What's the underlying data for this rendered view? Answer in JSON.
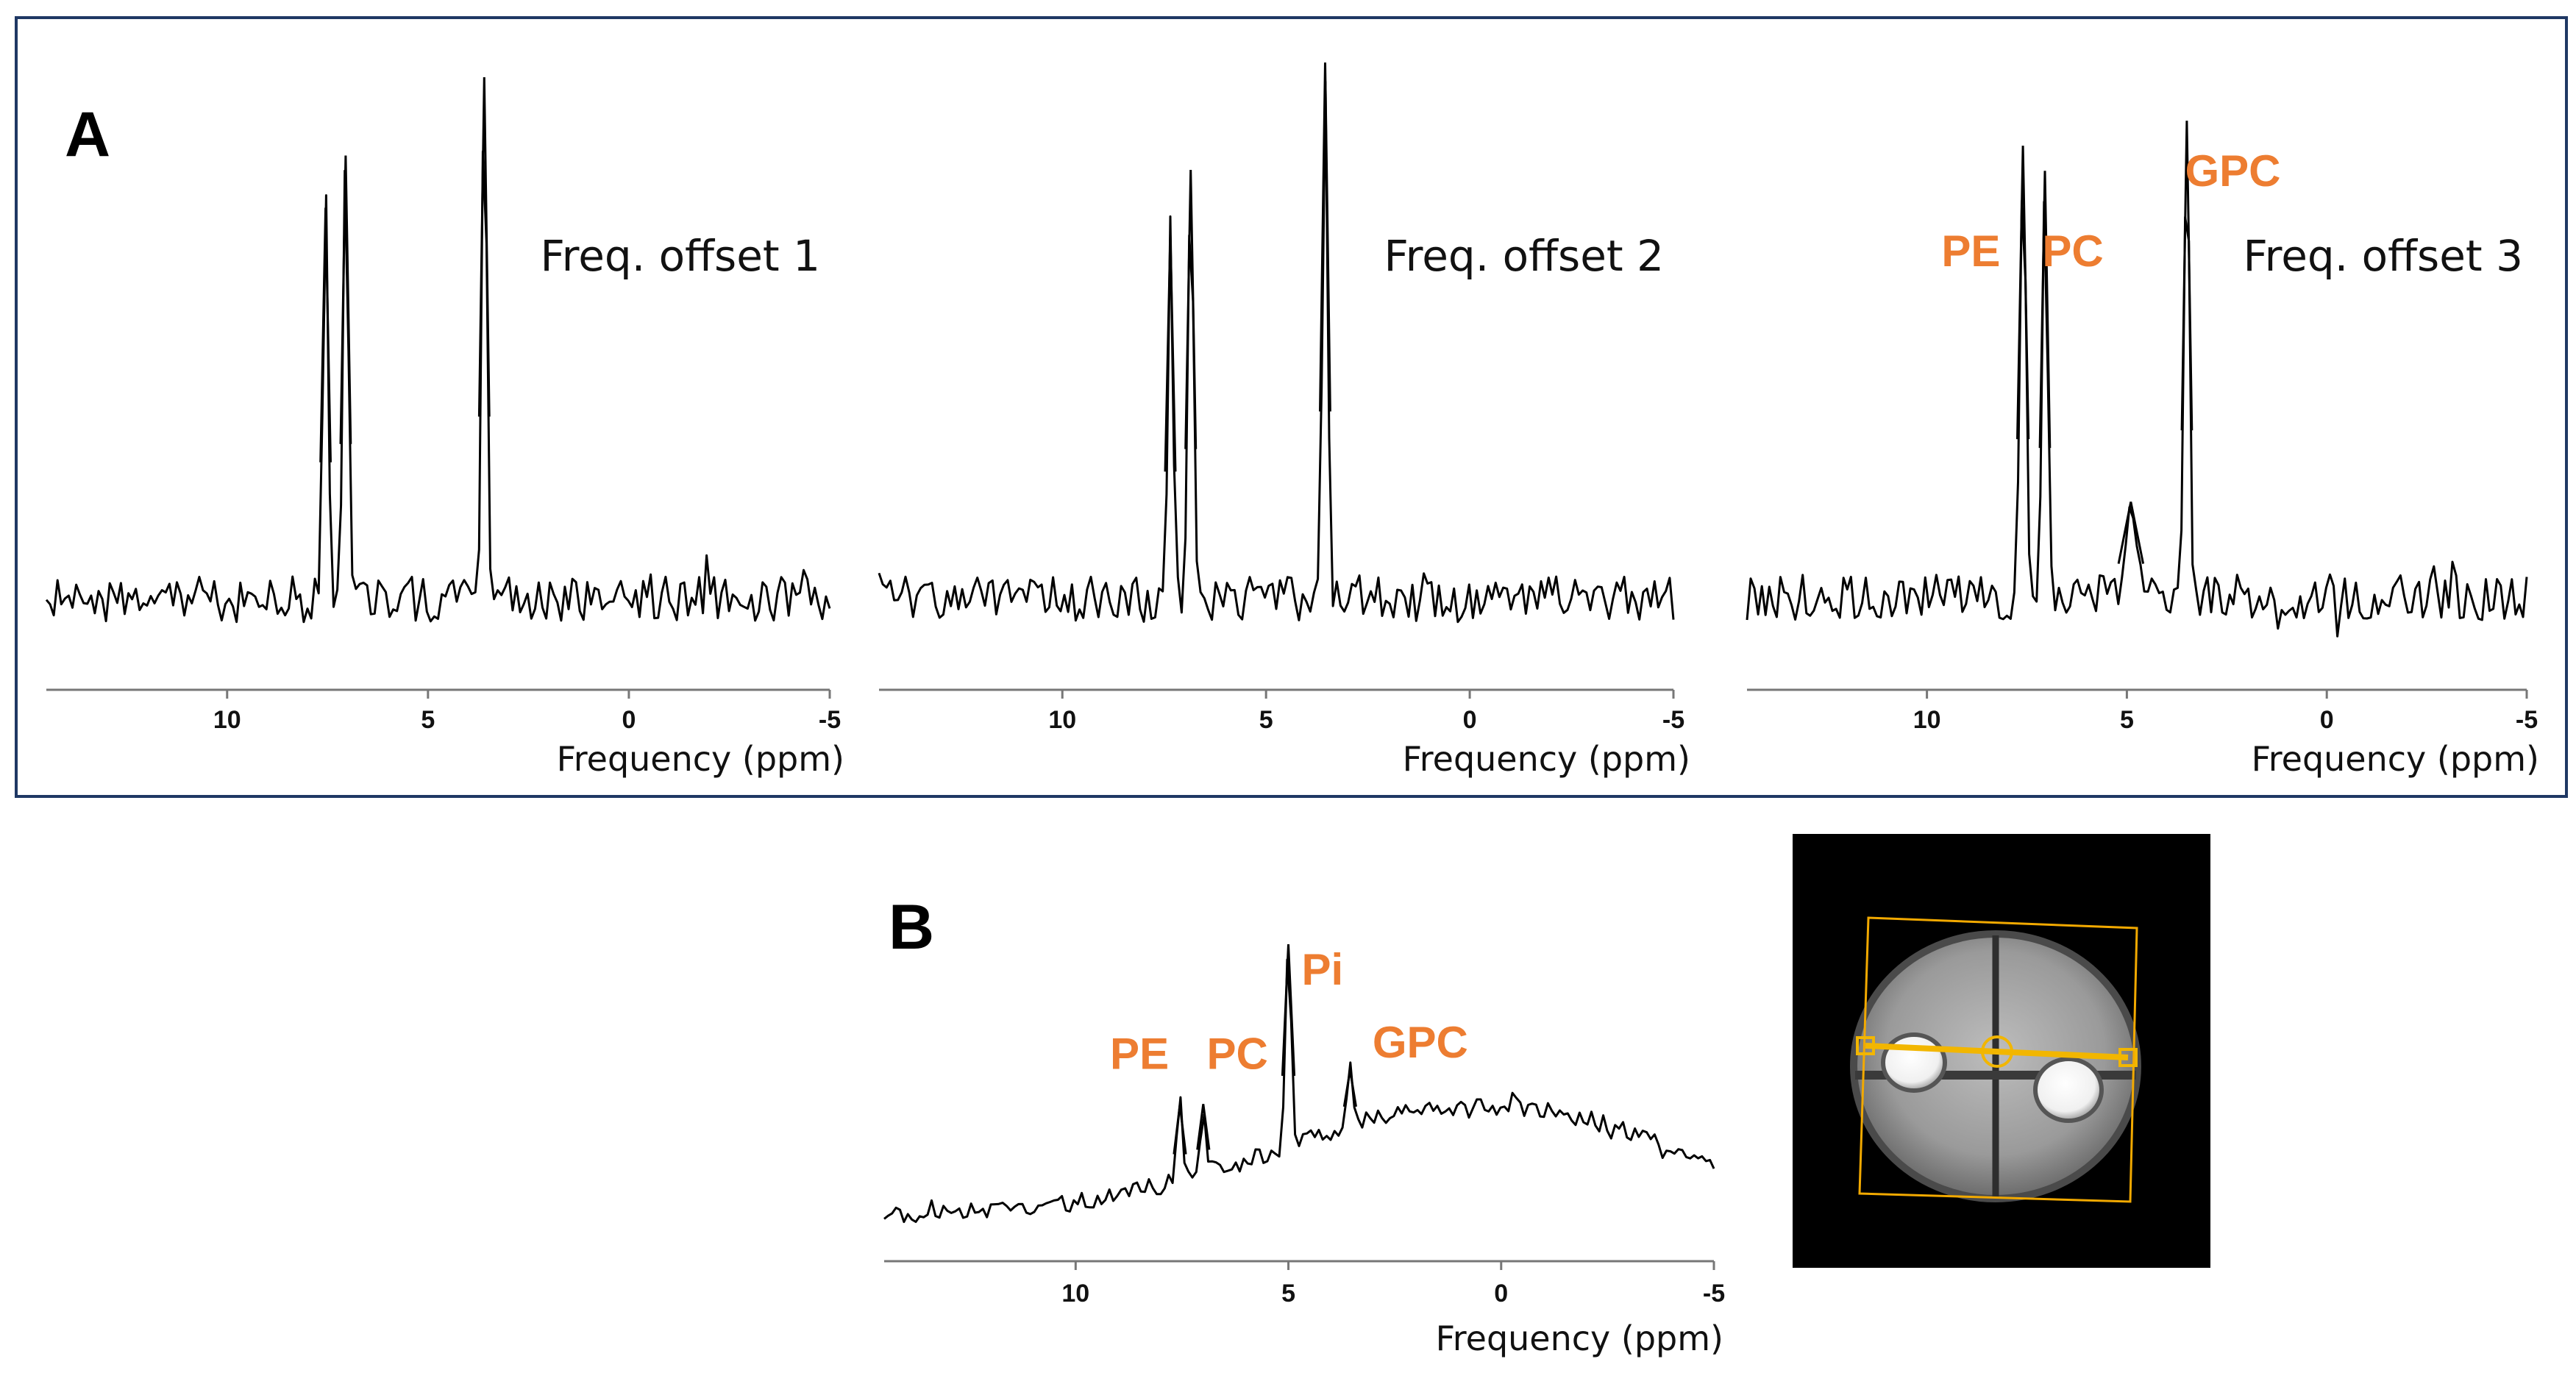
{
  "colors": {
    "trace": "#000000",
    "axis": "#777777",
    "annotation": "#ED7D31",
    "panel_border": "#1F3864",
    "mri_frame": "#F2A900",
    "mri_line": "#F2B600",
    "mri_background": "#000000"
  },
  "panel_letters": [
    "A",
    "B"
  ],
  "chart_data": [
    {
      "type": "line",
      "panel": "A",
      "label": "Freq. offset 1",
      "xlabel": "Frequency (ppm)",
      "xlim": [
        14.5,
        -5
      ],
      "x_reversed": true,
      "ticks": [
        {
          "value": 10,
          "label": "10"
        },
        {
          "value": 5,
          "label": "5"
        },
        {
          "value": 0,
          "label": "0"
        },
        {
          "value": -5,
          "label": "-5"
        }
      ],
      "peaks": [
        {
          "ppm": 7.55,
          "height": 0.75,
          "width": 0.09
        },
        {
          "ppm": 7.05,
          "height": 0.85,
          "width": 0.09
        },
        {
          "ppm": 3.6,
          "height": 1.0,
          "width": 0.09
        }
      ],
      "annotations": []
    },
    {
      "type": "line",
      "panel": "A",
      "label": "Freq. offset 2",
      "xlabel": "Frequency (ppm)",
      "xlim": [
        14.5,
        -5
      ],
      "x_reversed": true,
      "ticks": [
        {
          "value": 10,
          "label": "10"
        },
        {
          "value": 5,
          "label": "5"
        },
        {
          "value": 0,
          "label": "0"
        },
        {
          "value": -5,
          "label": "-5"
        }
      ],
      "peaks": [
        {
          "ppm": 7.35,
          "height": 0.68,
          "width": 0.09
        },
        {
          "ppm": 6.85,
          "height": 0.8,
          "width": 0.09
        },
        {
          "ppm": 3.55,
          "height": 1.0,
          "width": 0.09
        }
      ],
      "annotations": []
    },
    {
      "type": "line",
      "panel": "A",
      "label": "Freq. offset 3",
      "xlabel": "Frequency (ppm)",
      "xlim": [
        14.5,
        -5
      ],
      "x_reversed": true,
      "ticks": [
        {
          "value": 10,
          "label": "10"
        },
        {
          "value": 5,
          "label": "5"
        },
        {
          "value": 0,
          "label": "0"
        },
        {
          "value": -5,
          "label": "-5"
        }
      ],
      "peaks": [
        {
          "ppm": 7.6,
          "height": 0.9,
          "width": 0.1
        },
        {
          "ppm": 7.05,
          "height": 0.85,
          "width": 0.09
        },
        {
          "ppm": 4.9,
          "height": 0.19,
          "width": 0.22
        },
        {
          "ppm": 3.5,
          "height": 0.95,
          "width": 0.09
        }
      ],
      "annotations": [
        {
          "text": "PE",
          "ppm": 8.9,
          "level": 0.66
        },
        {
          "text": "PC",
          "ppm": 6.35,
          "level": 0.66
        },
        {
          "text": "GPC",
          "ppm": 2.35,
          "level": 0.82
        }
      ]
    },
    {
      "type": "line",
      "panel": "B",
      "label": "",
      "xlabel": "Frequency (ppm)",
      "xlim": [
        14.5,
        -5
      ],
      "x_reversed": true,
      "ticks": [
        {
          "value": 10,
          "label": "10"
        },
        {
          "value": 5,
          "label": "5"
        },
        {
          "value": 0,
          "label": "0"
        },
        {
          "value": -5,
          "label": "-5"
        }
      ],
      "peaks": [
        {
          "ppm": 7.55,
          "height": 0.27,
          "width": 0.1
        },
        {
          "ppm": 7.0,
          "height": 0.25,
          "width": 0.1
        },
        {
          "ppm": 5.0,
          "height": 0.72,
          "width": 0.1
        },
        {
          "ppm": 3.55,
          "height": 0.2,
          "width": 0.1
        }
      ],
      "annotations": [
        {
          "text": "PE",
          "ppm": 8.5,
          "level": 0.52
        },
        {
          "text": "PC",
          "ppm": 6.2,
          "level": 0.52
        },
        {
          "text": "Pi",
          "ppm": 4.2,
          "level": 0.82
        },
        {
          "text": "GPC",
          "ppm": 1.9,
          "level": 0.56
        }
      ]
    }
  ]
}
